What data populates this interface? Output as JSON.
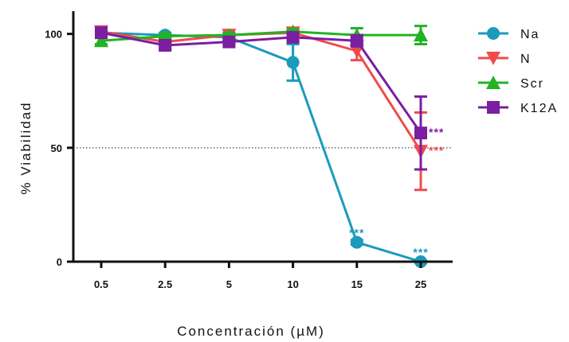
{
  "chart_data": {
    "type": "line",
    "title": "",
    "xlabel": "Concentración (µM)",
    "ylabel": "% Viabilidad",
    "categories": [
      "0.5",
      "2.5",
      "5",
      "10",
      "15",
      "25"
    ],
    "y_ticks": [
      0,
      50,
      100
    ],
    "y_tick_labels": [
      "0",
      "50",
      "100"
    ],
    "ylim": [
      0,
      110
    ],
    "reference_line": {
      "y": 50,
      "style": "dotted"
    },
    "legend_position": "right",
    "grid": false,
    "series": [
      {
        "name": "Na",
        "color": "#1a9bbb",
        "marker": "circle",
        "values": [
          100.5,
          99.5,
          98.5,
          87.5,
          8.5,
          0
        ],
        "errors": [
          1.5,
          1.0,
          1.0,
          8.0,
          1.0,
          0.5
        ],
        "annotations": [
          {
            "index": 4,
            "text": "***"
          },
          {
            "index": 5,
            "text": "***"
          }
        ]
      },
      {
        "name": "N",
        "color": "#ef4b4b",
        "marker": "triangle-down",
        "values": [
          101,
          96.5,
          99.5,
          100.5,
          92.5,
          48.5
        ],
        "errors": [
          1.0,
          1.5,
          1.0,
          1.0,
          4.0,
          17.0
        ],
        "annotations": [
          {
            "index": 5,
            "text": "***"
          }
        ]
      },
      {
        "name": "Scr",
        "color": "#22b322",
        "marker": "triangle-up",
        "values": [
          97,
          99,
          99.5,
          101,
          99.5,
          99.5
        ],
        "errors": [
          1.5,
          1.0,
          1.0,
          1.0,
          3.0,
          4.0
        ],
        "annotations": []
      },
      {
        "name": "K12A",
        "color": "#7a1fa0",
        "marker": "square",
        "values": [
          100.5,
          95,
          96.5,
          98.5,
          97,
          56.5
        ],
        "errors": [
          1.0,
          1.5,
          1.0,
          2.0,
          2.5,
          16.0
        ],
        "annotations": [
          {
            "index": 5,
            "text": "***"
          }
        ]
      }
    ]
  }
}
